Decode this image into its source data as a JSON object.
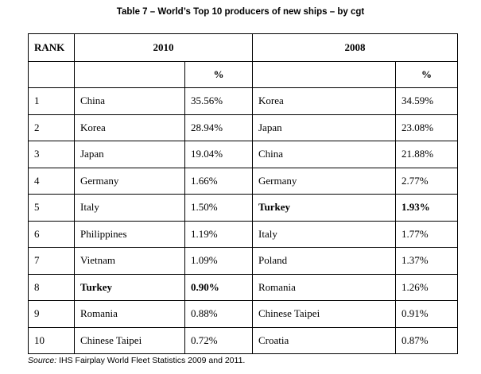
{
  "title": "Table 7 – World’s Top 10 producers of new ships – by cgt",
  "table": {
    "header": [
      "RANK",
      "2010",
      "2008"
    ],
    "subheader": [
      "%",
      "%"
    ],
    "rows": [
      [
        1,
        "China",
        "35.56%",
        "Korea",
        "34.59%"
      ],
      [
        2,
        "Korea",
        "28.94%",
        "Japan",
        "23.08%"
      ],
      [
        3,
        "Japan",
        "19.04%",
        "China",
        "21.88%"
      ],
      [
        4,
        "Germany",
        "1.66%",
        "Germany",
        "2.77%"
      ],
      [
        5,
        "Italy",
        "1.50%",
        "Turkey",
        "1.93%"
      ],
      [
        6,
        "Philippines",
        "1.19%",
        "Italy",
        "1.77%"
      ],
      [
        7,
        "Vietnam",
        "1.09%",
        "Poland",
        "1.37%"
      ],
      [
        8,
        "Turkey",
        "0.90%",
        "Romania",
        "1.26%"
      ],
      [
        9,
        "Romania",
        "0.88%",
        "Chinese Taipei",
        "0.91%"
      ],
      [
        10,
        "Chinese Taipei",
        "0.72%",
        "Croatia",
        "0.87%"
      ]
    ]
  },
  "source": {
    "label": "Source:",
    "text": " IHS Fairplay World Fleet Statistics 2009 and 2011."
  }
}
